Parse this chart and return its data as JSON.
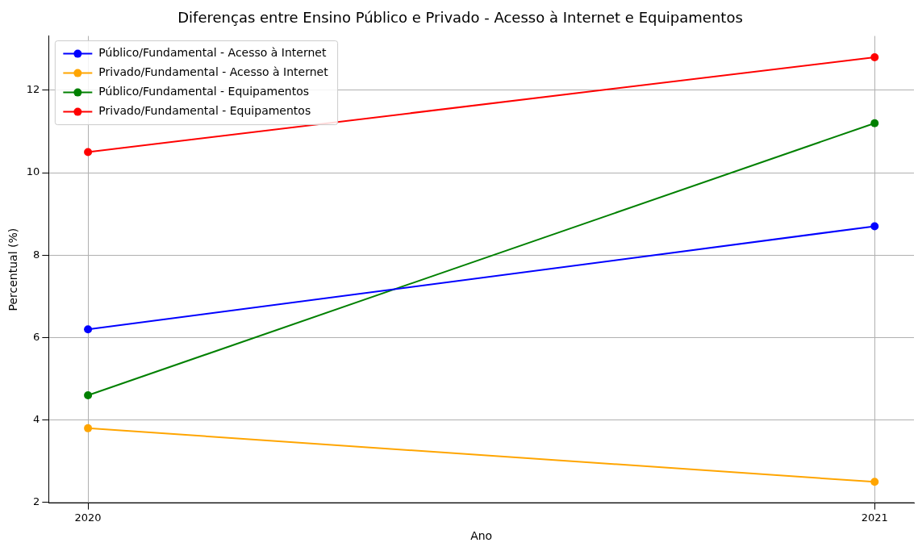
{
  "chart_data": {
    "type": "line",
    "title": "Diferenças entre Ensino Público e Privado - Acesso à Internet e Equipamentos",
    "xlabel": "Ano",
    "ylabel": "Percentual (%)",
    "x": [
      2020,
      2021
    ],
    "series": [
      {
        "name": "Público/Fundamental - Acesso à Internet",
        "color": "#0000ff",
        "values": [
          6.2,
          8.7
        ]
      },
      {
        "name": "Privado/Fundamental - Acesso à Internet",
        "color": "#ffa500",
        "values": [
          3.8,
          2.5
        ]
      },
      {
        "name": "Público/Fundamental - Equipamentos",
        "color": "#008000",
        "values": [
          4.6,
          11.2
        ]
      },
      {
        "name": "Privado/Fundamental - Equipamentos",
        "color": "#ff0000",
        "values": [
          10.5,
          12.8
        ]
      }
    ],
    "xlim": [
      2019.95,
      2021.05
    ],
    "xticks": [
      2020,
      2021
    ],
    "ylim": [
      1.985,
      13.315
    ],
    "yticks": [
      2,
      4,
      6,
      8,
      10,
      12
    ],
    "grid": true,
    "legend": "top left",
    "marker": "circle",
    "line_style": "solid"
  }
}
